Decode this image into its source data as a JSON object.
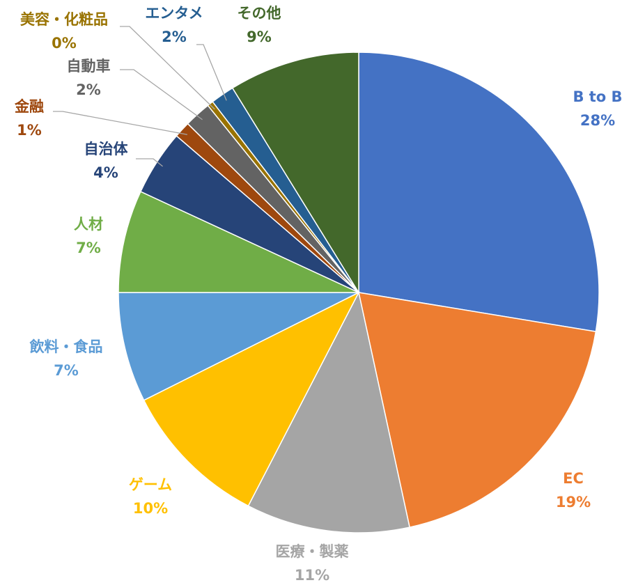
{
  "chart_data": {
    "type": "pie",
    "categories": [
      "B to B",
      "EC",
      "医療・製薬",
      "ゲーム",
      "飲料・食品",
      "人材",
      "自治体",
      "金融",
      "自動車",
      "美容・化粧品",
      "エンタメ",
      "その他"
    ],
    "values": [
      27.6,
      19.0,
      11.0,
      10.0,
      7.4,
      6.9,
      4.4,
      1.1,
      1.8,
      0.4,
      1.6,
      8.8
    ],
    "value_labels": [
      "28%",
      "19%",
      "11%",
      "10%",
      "7%",
      "7%",
      "4%",
      "1%",
      "2%",
      "0%",
      "2%",
      "9%"
    ],
    "colors": [
      "#4472c4",
      "#ed7d31",
      "#a5a5a5",
      "#ffc000",
      "#5b9bd5",
      "#70ad47",
      "#264478",
      "#9e480e",
      "#636363",
      "#997300",
      "#255e91",
      "#43682b"
    ]
  }
}
